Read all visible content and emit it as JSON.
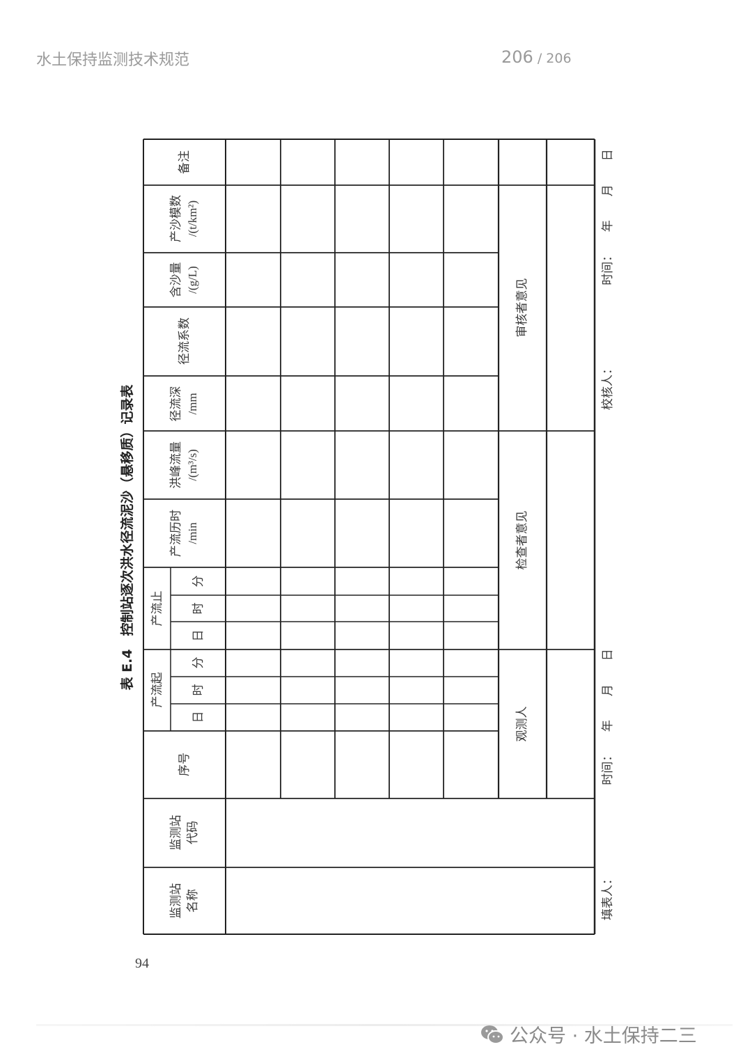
{
  "header": {
    "doc_title": "水土保持监测技术规范",
    "page_current": "206",
    "page_sep": " / ",
    "page_total": "206"
  },
  "table": {
    "title": "表 E.4　控制站逐次洪水径流泥沙（悬移质）记录表",
    "columns": {
      "station_name": "监测站\n名称",
      "station_code": "监测站\n代码",
      "seq": "序号",
      "start_group": "产流起",
      "stop_group": "产流止",
      "day": "日",
      "hour": "时",
      "minute": "分",
      "duration": "产流历时\n/min",
      "peak": "洪峰流量\n/(m³/s)",
      "depth": "径流深\n/mm",
      "coef": "径流系数",
      "sediment": "含沙量\n/(g/L)",
      "modulus": "产沙模数\n/(t/km²)",
      "remark": "备注"
    },
    "sign_row": {
      "observer": "观测人",
      "inspector": "检查者意见",
      "reviewer": "审核者意见"
    }
  },
  "footer": {
    "filler": "填表人：",
    "time1": "时间：　　年　　月　　日",
    "checker": "校核人：",
    "time2": "时间：　　年　　月　　日",
    "page_number": "94"
  },
  "watermark": {
    "icon": "wechat-icon",
    "text": "公众号 · 水土保持二三"
  }
}
